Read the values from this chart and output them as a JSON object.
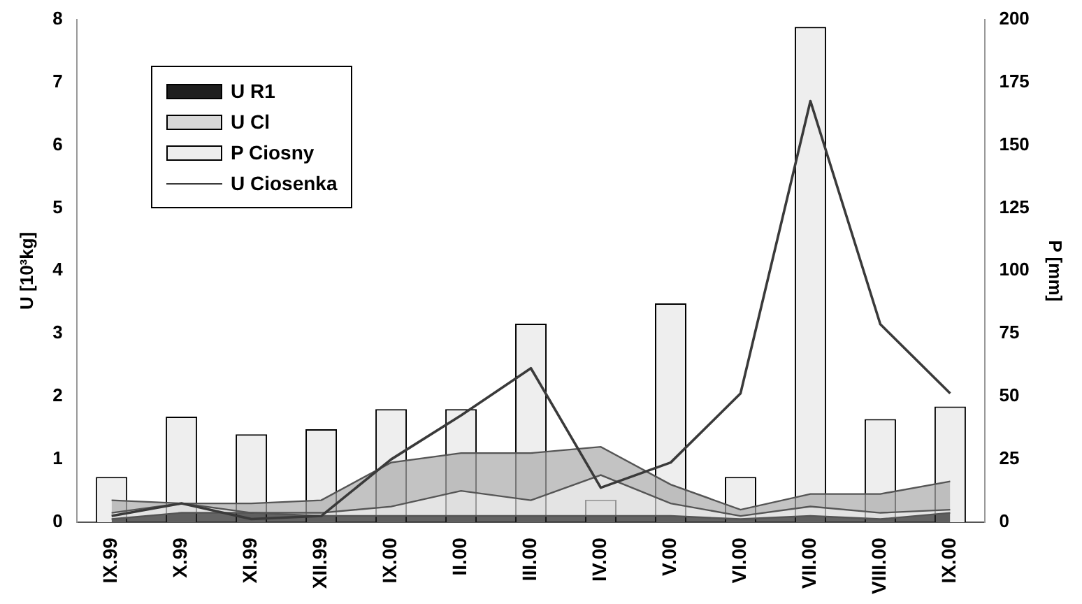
{
  "chart_data": {
    "type": "line",
    "ylabel": "U [10³kg]",
    "y2label": "P [mm]",
    "categories": [
      "IX.99",
      "X.99",
      "XI.99",
      "XII.99",
      "IX.00",
      "II.00",
      "III.00",
      "IV.00",
      "V.00",
      "VI.00",
      "VII.00",
      "VIII.00",
      "IX.00"
    ],
    "series": [
      {
        "name": "U R1",
        "type": "area",
        "color": "#1e1e1e",
        "values": [
          0.05,
          0.15,
          0.15,
          0.1,
          0.1,
          0.1,
          0.1,
          0.1,
          0.1,
          0.05,
          0.1,
          0.05,
          0.15
        ]
      },
      {
        "name": "U Cl",
        "type": "area",
        "color": "#d8d8d8",
        "values": [
          0.1,
          0.15,
          0,
          0.05,
          0.15,
          0.4,
          0.25,
          0.65,
          0.2,
          0.05,
          0.15,
          0.1,
          0.05
        ]
      },
      {
        "name": "P Ciosny",
        "type": "bar",
        "axis": "y2",
        "color": "#eeeeee",
        "values": [
          18,
          42,
          35,
          37,
          45,
          45,
          79,
          9,
          87,
          18,
          197,
          41,
          46
        ]
      },
      {
        "name": "U Ciosenka",
        "color": "#3a3a3a",
        "values": [
          0.1,
          0.3,
          0.05,
          0.1,
          1.0,
          1.7,
          2.45,
          0.55,
          0.95,
          2.05,
          6.7,
          3.15,
          2.05
        ]
      },
      {
        "type": "area",
        "color": "#a8a8a8",
        "values": [
          0.2,
          0,
          0.15,
          0.2,
          0.7,
          0.6,
          0.75,
          0.45,
          0.3,
          0.1,
          0.2,
          0.3,
          0.45
        ]
      }
    ],
    "stacked": true,
    "ylim": [
      0,
      8
    ],
    "yticks": [
      0,
      1,
      2,
      3,
      4,
      5,
      6,
      7,
      8
    ],
    "y2lim": [
      0,
      200
    ],
    "y2ticks": [
      0,
      25,
      50,
      75,
      100,
      125,
      150,
      175,
      200
    ],
    "grid": false,
    "legend": "top left",
    "marker": "none"
  }
}
